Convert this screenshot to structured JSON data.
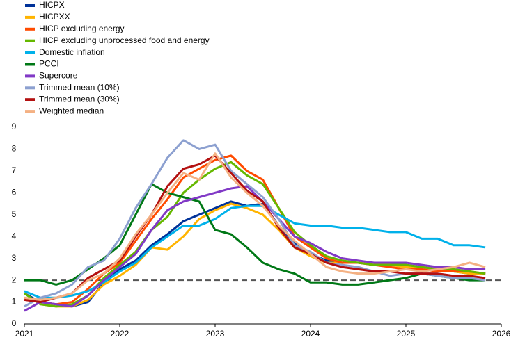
{
  "chart_data": {
    "type": "line",
    "x": [
      2021.0,
      2021.167,
      2021.333,
      2021.5,
      2021.667,
      2021.833,
      2022.0,
      2022.167,
      2022.333,
      2022.5,
      2022.667,
      2022.833,
      2023.0,
      2023.167,
      2023.333,
      2023.5,
      2023.667,
      2023.833,
      2024.0,
      2024.167,
      2024.333,
      2024.5,
      2024.667,
      2024.833,
      2025.0,
      2025.167,
      2025.333,
      2025.5,
      2025.667,
      2025.833
    ],
    "series": [
      {
        "name": "HICPX",
        "color": "#003299",
        "values": [
          1.4,
          1.0,
          0.9,
          0.8,
          1.0,
          1.9,
          2.5,
          2.9,
          3.6,
          4.1,
          4.7,
          5.0,
          5.3,
          5.6,
          5.4,
          5.5,
          4.5,
          3.7,
          3.2,
          2.9,
          2.8,
          2.8,
          2.7,
          2.7,
          2.7,
          2.6,
          2.5,
          2.4,
          2.3,
          2.3
        ]
      },
      {
        "name": "HICPXX",
        "color": "#ffb400",
        "values": [
          1.4,
          0.9,
          0.8,
          0.8,
          1.1,
          1.8,
          2.2,
          2.7,
          3.5,
          3.4,
          4.0,
          4.8,
          5.2,
          5.5,
          5.3,
          5.0,
          4.3,
          3.5,
          3.1,
          2.8,
          2.8,
          2.8,
          2.7,
          2.7,
          2.6,
          2.6,
          2.5,
          2.4,
          2.3,
          2.3
        ]
      },
      {
        "name": "HICP excluding energy",
        "color": "#ff4b00",
        "values": [
          1.2,
          1.0,
          0.9,
          1.0,
          1.6,
          2.3,
          2.8,
          3.8,
          4.8,
          5.7,
          6.7,
          7.1,
          7.5,
          7.7,
          7.0,
          6.6,
          5.3,
          4.0,
          3.5,
          3.0,
          2.8,
          2.8,
          2.7,
          2.6,
          2.5,
          2.5,
          2.4,
          2.4,
          2.4,
          2.3
        ]
      },
      {
        "name": "HICP excluding unprocessed food and energy",
        "color": "#65b800",
        "values": [
          1.4,
          0.9,
          0.8,
          0.9,
          1.3,
          2.1,
          2.7,
          3.3,
          4.3,
          4.9,
          6.0,
          6.6,
          7.1,
          7.4,
          6.8,
          6.4,
          5.3,
          4.2,
          3.6,
          3.1,
          2.9,
          2.8,
          2.7,
          2.7,
          2.7,
          2.6,
          2.5,
          2.5,
          2.4,
          2.3
        ]
      },
      {
        "name": "Domestic inflation",
        "color": "#00b1ea",
        "values": [
          1.5,
          1.2,
          1.2,
          1.3,
          1.5,
          1.9,
          2.4,
          2.8,
          3.5,
          4.0,
          4.5,
          4.5,
          4.8,
          5.3,
          5.4,
          5.4,
          5.0,
          4.6,
          4.5,
          4.5,
          4.4,
          4.4,
          4.3,
          4.2,
          4.2,
          3.9,
          3.9,
          3.6,
          3.6,
          3.5
        ]
      },
      {
        "name": "PCCI",
        "color": "#007816",
        "values": [
          2.0,
          2.0,
          1.8,
          2.0,
          2.5,
          3.0,
          3.6,
          5.0,
          6.4,
          6.0,
          5.8,
          5.6,
          4.3,
          4.1,
          3.5,
          2.8,
          2.5,
          2.3,
          1.9,
          1.9,
          1.8,
          1.8,
          1.9,
          2.0,
          2.1,
          2.3,
          2.2,
          2.1,
          2.0,
          2.0
        ]
      },
      {
        "name": "Supercore",
        "color": "#8139c6",
        "values": [
          0.6,
          1.0,
          0.9,
          0.8,
          1.3,
          2.0,
          2.6,
          3.2,
          4.3,
          5.2,
          5.6,
          5.8,
          6.0,
          6.2,
          6.3,
          5.6,
          4.8,
          4.0,
          3.7,
          3.3,
          3.0,
          2.9,
          2.8,
          2.8,
          2.8,
          2.7,
          2.6,
          2.6,
          2.5,
          2.5
        ]
      },
      {
        "name": "Trimmed mean (10%)",
        "color": "#8ca0d0",
        "values": [
          0.8,
          1.2,
          1.4,
          1.8,
          2.6,
          2.9,
          3.9,
          5.3,
          6.4,
          7.6,
          8.4,
          8.0,
          8.2,
          7.0,
          6.4,
          5.8,
          4.8,
          3.6,
          3.3,
          2.8,
          2.7,
          2.6,
          2.4,
          2.2,
          2.3,
          2.3,
          2.2,
          2.1,
          2.1,
          2.0
        ]
      },
      {
        "name": "Trimmed mean (30%)",
        "color": "#b31010",
        "values": [
          1.1,
          1.0,
          1.2,
          1.4,
          2.1,
          2.5,
          2.9,
          4.0,
          5.0,
          6.3,
          7.1,
          7.3,
          7.7,
          6.9,
          6.1,
          5.6,
          4.4,
          3.5,
          3.2,
          2.8,
          2.6,
          2.5,
          2.4,
          2.4,
          2.3,
          2.3,
          2.3,
          2.2,
          2.2,
          2.1
        ]
      },
      {
        "name": "Weighted median",
        "color": "#f4b183",
        "values": [
          1.2,
          1.1,
          1.2,
          1.4,
          2.0,
          2.3,
          3.0,
          4.1,
          5.0,
          6.0,
          6.9,
          6.6,
          7.8,
          6.7,
          6.0,
          5.4,
          4.5,
          3.8,
          3.2,
          2.6,
          2.4,
          2.3,
          2.3,
          2.4,
          2.5,
          2.4,
          2.5,
          2.6,
          2.8,
          2.6
        ]
      }
    ],
    "reference_line": 2,
    "xlim": [
      2021,
      2026
    ],
    "xticks": [
      2021,
      2022,
      2023,
      2024,
      2025,
      2026
    ],
    "ylim": [
      0,
      9
    ],
    "yticks": [
      0,
      1,
      2,
      3,
      4,
      5,
      6,
      7,
      8,
      9
    ]
  }
}
